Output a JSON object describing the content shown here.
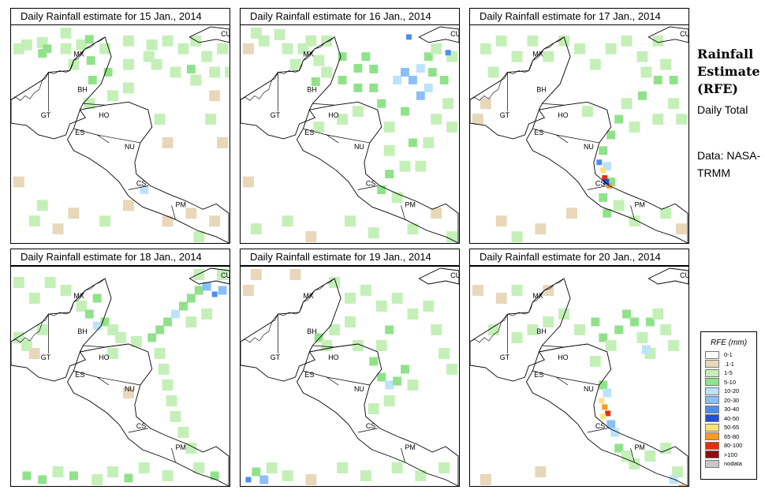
{
  "panels": [
    {
      "title": "Daily Rainfall estimate for  15 Jan., 2014",
      "cells": [
        [
          10,
          30,
          2
        ],
        [
          20,
          25,
          2
        ],
        [
          40,
          22,
          2
        ],
        [
          40,
          36,
          3
        ],
        [
          46,
          30,
          3
        ],
        [
          70,
          10,
          2
        ],
        [
          70,
          30,
          2
        ],
        [
          80,
          50,
          2
        ],
        [
          90,
          25,
          2
        ],
        [
          100,
          18,
          3
        ],
        [
          102,
          45,
          3
        ],
        [
          104,
          70,
          3
        ],
        [
          100,
          100,
          2
        ],
        [
          120,
          30,
          2
        ],
        [
          124,
          60,
          3
        ],
        [
          130,
          90,
          2
        ],
        [
          150,
          20,
          2
        ],
        [
          150,
          50,
          2
        ],
        [
          150,
          80,
          2
        ],
        [
          176,
          40,
          2
        ],
        [
          180,
          25,
          2
        ],
        [
          186,
          50,
          2
        ],
        [
          200,
          20,
          2
        ],
        [
          220,
          30,
          2
        ],
        [
          230,
          56,
          3
        ],
        [
          236,
          70,
          2
        ],
        [
          210,
          60,
          2
        ],
        [
          236,
          20,
          2
        ],
        [
          250,
          40,
          2
        ],
        [
          260,
          60,
          2
        ],
        [
          270,
          30,
          2
        ],
        [
          280,
          60,
          2
        ],
        [
          260,
          90,
          1
        ],
        [
          190,
          120,
          2
        ],
        [
          200,
          150,
          1
        ],
        [
          255,
          120,
          2
        ],
        [
          270,
          150,
          1
        ],
        [
          10,
          200,
          1
        ],
        [
          30,
          250,
          2
        ],
        [
          40,
          230,
          2
        ],
        [
          60,
          260,
          1
        ],
        [
          80,
          240,
          1
        ],
        [
          120,
          250,
          2
        ],
        [
          150,
          230,
          1
        ],
        [
          170,
          210,
          4
        ],
        [
          200,
          250,
          1
        ],
        [
          230,
          240,
          1
        ],
        [
          240,
          270,
          2
        ],
        [
          260,
          250,
          1
        ]
      ]
    },
    {
      "title": "Daily Rainfall estimate for  16 Jan., 2014",
      "cells": [
        [
          10,
          30,
          1
        ],
        [
          20,
          10,
          2
        ],
        [
          30,
          20,
          2
        ],
        [
          50,
          12,
          2
        ],
        [
          60,
          30,
          2
        ],
        [
          80,
          30,
          2
        ],
        [
          70,
          50,
          2
        ],
        [
          90,
          20,
          2
        ],
        [
          110,
          20,
          2
        ],
        [
          100,
          45,
          2
        ],
        [
          96,
          72,
          3
        ],
        [
          110,
          60,
          2
        ],
        [
          130,
          40,
          3
        ],
        [
          130,
          70,
          3
        ],
        [
          150,
          80,
          3
        ],
        [
          150,
          55,
          3
        ],
        [
          160,
          40,
          3
        ],
        [
          170,
          56,
          3
        ],
        [
          170,
          80,
          3
        ],
        [
          180,
          100,
          3
        ],
        [
          190,
          130,
          2
        ],
        [
          190,
          160,
          2
        ],
        [
          190,
          190,
          3
        ],
        [
          180,
          210,
          3
        ],
        [
          200,
          220,
          2
        ],
        [
          200,
          70,
          4
        ],
        [
          210,
          60,
          5
        ],
        [
          220,
          70,
          5
        ],
        [
          230,
          90,
          5
        ],
        [
          230,
          55,
          4
        ],
        [
          240,
          40,
          3
        ],
        [
          240,
          80,
          4
        ],
        [
          245,
          60,
          3
        ],
        [
          250,
          30,
          2
        ],
        [
          260,
          70,
          3
        ],
        [
          270,
          40,
          2
        ],
        [
          265,
          100,
          2
        ],
        [
          270,
          130,
          2
        ],
        [
          250,
          120,
          2
        ],
        [
          240,
          150,
          2
        ],
        [
          230,
          180,
          2
        ],
        [
          220,
          150,
          3
        ],
        [
          210,
          180,
          2
        ],
        [
          210,
          110,
          3
        ],
        [
          215,
          15,
          6
        ],
        [
          265,
          35,
          6
        ],
        [
          100,
          130,
          2
        ],
        [
          130,
          120,
          2
        ],
        [
          150,
          110,
          2
        ],
        [
          10,
          200,
          1
        ],
        [
          20,
          260,
          2
        ],
        [
          60,
          250,
          2
        ],
        [
          90,
          270,
          1
        ],
        [
          140,
          250,
          2
        ],
        [
          170,
          265,
          2
        ],
        [
          220,
          260,
          2
        ],
        [
          250,
          240,
          1
        ],
        [
          270,
          270,
          2
        ]
      ]
    },
    {
      "title": "Daily Rainfall estimate for  17 Jan., 2014",
      "cells": [
        [
          20,
          30,
          2
        ],
        [
          40,
          20,
          2
        ],
        [
          60,
          40,
          2
        ],
        [
          80,
          20,
          2
        ],
        [
          100,
          40,
          2
        ],
        [
          120,
          20,
          2
        ],
        [
          140,
          30,
          2
        ],
        [
          160,
          50,
          2
        ],
        [
          180,
          30,
          2
        ],
        [
          200,
          20,
          2
        ],
        [
          220,
          40,
          2
        ],
        [
          240,
          20,
          2
        ],
        [
          250,
          50,
          2
        ],
        [
          260,
          70,
          3
        ],
        [
          240,
          70,
          3
        ],
        [
          225,
          60,
          2
        ],
        [
          220,
          90,
          3
        ],
        [
          200,
          100,
          2
        ],
        [
          190,
          120,
          3
        ],
        [
          180,
          140,
          3
        ],
        [
          170,
          160,
          3
        ],
        [
          175,
          180,
          4
        ],
        [
          180,
          200,
          3
        ],
        [
          170,
          220,
          3
        ],
        [
          175,
          240,
          3
        ],
        [
          190,
          230,
          2
        ],
        [
          165,
          175,
          6
        ],
        [
          170,
          185,
          8
        ],
        [
          172,
          195,
          10
        ],
        [
          178,
          205,
          9
        ],
        [
          174,
          200,
          7
        ],
        [
          210,
          130,
          2
        ],
        [
          240,
          120,
          2
        ],
        [
          260,
          100,
          2
        ],
        [
          270,
          120,
          2
        ],
        [
          10,
          120,
          1
        ],
        [
          20,
          100,
          1
        ],
        [
          30,
          60,
          2
        ],
        [
          150,
          110,
          2
        ],
        [
          40,
          250,
          1
        ],
        [
          60,
          270,
          2
        ],
        [
          90,
          260,
          1
        ],
        [
          130,
          240,
          1
        ],
        [
          210,
          250,
          2
        ],
        [
          250,
          240,
          2
        ],
        [
          270,
          260,
          1
        ]
      ]
    },
    {
      "title": "Daily Rainfall estimate for  18 Jan., 2014",
      "cells": [
        [
          10,
          20,
          2
        ],
        [
          30,
          40,
          2
        ],
        [
          50,
          20,
          2
        ],
        [
          70,
          30,
          2
        ],
        [
          90,
          50,
          2
        ],
        [
          110,
          40,
          3
        ],
        [
          100,
          60,
          3
        ],
        [
          110,
          75,
          4
        ],
        [
          120,
          70,
          3
        ],
        [
          130,
          80,
          2
        ],
        [
          140,
          90,
          2
        ],
        [
          160,
          95,
          2
        ],
        [
          180,
          90,
          3
        ],
        [
          190,
          80,
          3
        ],
        [
          200,
          70,
          3
        ],
        [
          210,
          60,
          4
        ],
        [
          220,
          50,
          3
        ],
        [
          230,
          40,
          3
        ],
        [
          240,
          30,
          3
        ],
        [
          250,
          25,
          5
        ],
        [
          260,
          35,
          6
        ],
        [
          270,
          30,
          5
        ],
        [
          240,
          10,
          2
        ],
        [
          270,
          10,
          2
        ],
        [
          230,
          70,
          2
        ],
        [
          250,
          60,
          2
        ],
        [
          190,
          110,
          2
        ],
        [
          195,
          130,
          2
        ],
        [
          200,
          150,
          2
        ],
        [
          205,
          170,
          2
        ],
        [
          210,
          190,
          2
        ],
        [
          220,
          210,
          2
        ],
        [
          230,
          230,
          2
        ],
        [
          10,
          90,
          2
        ],
        [
          20,
          100,
          2
        ],
        [
          30,
          110,
          1
        ],
        [
          40,
          80,
          2
        ],
        [
          130,
          110,
          2
        ],
        [
          150,
          160,
          1
        ],
        [
          20,
          265,
          3
        ],
        [
          40,
          270,
          3
        ],
        [
          60,
          260,
          2
        ],
        [
          80,
          265,
          3
        ],
        [
          110,
          270,
          2
        ],
        [
          130,
          260,
          2
        ],
        [
          150,
          268,
          3
        ],
        [
          170,
          255,
          2
        ],
        [
          200,
          265,
          2
        ],
        [
          240,
          255,
          2
        ],
        [
          260,
          265,
          3
        ]
      ]
    },
    {
      "title": "Daily Rainfall estimate for  19 Jan., 2014",
      "cells": [
        [
          10,
          30,
          1
        ],
        [
          20,
          10,
          1
        ],
        [
          70,
          10,
          1
        ],
        [
          120,
          20,
          2
        ],
        [
          140,
          40,
          2
        ],
        [
          160,
          30,
          2
        ],
        [
          180,
          50,
          2
        ],
        [
          200,
          40,
          2
        ],
        [
          220,
          60,
          2
        ],
        [
          240,
          50,
          2
        ],
        [
          190,
          80,
          3
        ],
        [
          180,
          100,
          2
        ],
        [
          170,
          120,
          3
        ],
        [
          180,
          140,
          3
        ],
        [
          190,
          150,
          4
        ],
        [
          200,
          145,
          3
        ],
        [
          210,
          130,
          3
        ],
        [
          220,
          150,
          2
        ],
        [
          190,
          170,
          2
        ],
        [
          170,
          180,
          2
        ],
        [
          100,
          90,
          3
        ],
        [
          110,
          100,
          2
        ],
        [
          120,
          80,
          2
        ],
        [
          140,
          70,
          2
        ],
        [
          150,
          100,
          2
        ],
        [
          250,
          80,
          2
        ],
        [
          260,
          110,
          2
        ],
        [
          270,
          130,
          2
        ],
        [
          20,
          260,
          3
        ],
        [
          10,
          270,
          6
        ],
        [
          30,
          270,
          5
        ],
        [
          40,
          255,
          2
        ],
        [
          60,
          265,
          2
        ],
        [
          90,
          270,
          1
        ],
        [
          130,
          255,
          2
        ],
        [
          160,
          265,
          2
        ],
        [
          200,
          255,
          2
        ],
        [
          230,
          265,
          2
        ],
        [
          260,
          255,
          2
        ]
      ]
    },
    {
      "title": "Daily Rainfall estimate for  20 Jan., 2014",
      "cells": [
        [
          10,
          30,
          1
        ],
        [
          30,
          80,
          2
        ],
        [
          60,
          90,
          2
        ],
        [
          80,
          80,
          2
        ],
        [
          100,
          70,
          2
        ],
        [
          120,
          60,
          2
        ],
        [
          140,
          80,
          2
        ],
        [
          160,
          70,
          3
        ],
        [
          170,
          90,
          3
        ],
        [
          180,
          100,
          2
        ],
        [
          190,
          80,
          3
        ],
        [
          200,
          60,
          3
        ],
        [
          210,
          70,
          3
        ],
        [
          220,
          90,
          2
        ],
        [
          230,
          70,
          3
        ],
        [
          240,
          60,
          2
        ],
        [
          250,
          80,
          2
        ],
        [
          260,
          100,
          2
        ],
        [
          230,
          110,
          2
        ],
        [
          225,
          105,
          4
        ],
        [
          170,
          150,
          3
        ],
        [
          175,
          160,
          4
        ],
        [
          168,
          170,
          8
        ],
        [
          172,
          178,
          9
        ],
        [
          176,
          186,
          10
        ],
        [
          170,
          190,
          8
        ],
        [
          180,
          200,
          5
        ],
        [
          185,
          210,
          4
        ],
        [
          190,
          230,
          3
        ],
        [
          200,
          240,
          2
        ],
        [
          210,
          250,
          2
        ],
        [
          230,
          240,
          2
        ],
        [
          250,
          230,
          2
        ],
        [
          265,
          260,
          2
        ],
        [
          270,
          280,
          9
        ],
        [
          260,
          270,
          4
        ],
        [
          40,
          40,
          1
        ],
        [
          60,
          30,
          2
        ],
        [
          100,
          30,
          1
        ],
        [
          160,
          120,
          2
        ],
        [
          20,
          270,
          1
        ],
        [
          90,
          260,
          1
        ]
      ]
    }
  ],
  "labels": [
    [
      "MX",
      80,
      40
    ],
    [
      "BH",
      85,
      85
    ],
    [
      "GT",
      38,
      118
    ],
    [
      "HO",
      112,
      118
    ],
    [
      "ES",
      82,
      140
    ],
    [
      "NU",
      145,
      158
    ],
    [
      "CS",
      160,
      205
    ],
    [
      "PM",
      210,
      232
    ],
    [
      "CU",
      268,
      14
    ]
  ],
  "sidebar": {
    "title": "Rainfall Estimate (RFE)",
    "line1": "Daily Total",
    "line2": "Data: NASA-TRMM"
  },
  "legend": {
    "title": "RFE (mm)",
    "items": [
      {
        "label": "0-1",
        "color": "#ffffff"
      },
      {
        "label": ".1-1",
        "color": "#e8d7b9"
      },
      {
        "label": "1-5",
        "color": "#c4f0b8"
      },
      {
        "label": "5-10",
        "color": "#90e28a"
      },
      {
        "label": "10-20",
        "color": "#bde3fb"
      },
      {
        "label": "20-30",
        "color": "#8ac0f5"
      },
      {
        "label": "30-40",
        "color": "#4b8ef0"
      },
      {
        "label": "40-50",
        "color": "#2050d8"
      },
      {
        "label": "50-65",
        "color": "#fce07a"
      },
      {
        "label": "65-80",
        "color": "#fa9a1e"
      },
      {
        "label": "80-100",
        "color": "#e03010"
      },
      {
        "label": ">100",
        "color": "#8a1010"
      },
      {
        "label": "nodata",
        "color": "#c8c8c8"
      }
    ]
  }
}
